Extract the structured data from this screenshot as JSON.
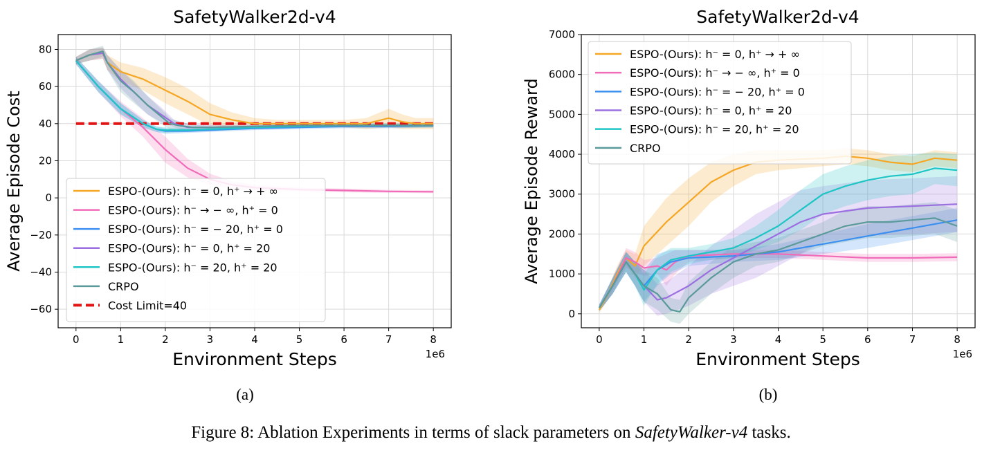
{
  "figure": {
    "caption_prefix": "Figure 8: Ablation Experiments in terms of slack parameters on ",
    "caption_em": "SafetyWalker-v4",
    "caption_suffix": " tasks."
  },
  "chart_data": [
    {
      "type": "line",
      "panel_label": "(a)",
      "title": "SafetyWalker2d-v4",
      "xlabel": "Environment Steps",
      "ylabel": "Average Episode Cost",
      "x_offset_text": "1e6",
      "xlim": [
        -0.4,
        8.4
      ],
      "ylim": [
        -70,
        88
      ],
      "xticks": [
        0,
        1,
        2,
        3,
        4,
        5,
        6,
        7,
        8
      ],
      "yticks": [
        -60,
        -40,
        -20,
        0,
        20,
        40,
        60,
        80
      ],
      "ytick_labels": [
        "−60",
        "−40",
        "−20",
        "0",
        "20",
        "40",
        "60",
        "80"
      ],
      "grid": true,
      "legend_position": "lower-left",
      "series": [
        {
          "name": "ESPO-(Ours): h⁻ = 0, h⁺ → + ∞",
          "color": "#f5a623",
          "x": [
            0,
            0.3,
            0.6,
            0.7,
            1,
            1.5,
            2,
            2.5,
            3,
            3.5,
            4,
            4.5,
            5,
            5.5,
            6,
            6.5,
            7,
            7.3,
            7.6,
            8
          ],
          "y": [
            74,
            77,
            78,
            73,
            68,
            64,
            58,
            52,
            45,
            42,
            40,
            40,
            40,
            40,
            40,
            40,
            43,
            41,
            40,
            40
          ],
          "band": [
            2,
            3,
            3,
            4,
            5,
            6,
            7,
            7,
            6,
            4,
            3,
            2,
            2,
            2,
            2,
            3,
            5,
            4,
            3,
            3
          ]
        },
        {
          "name": "ESPO-(Ours): h⁻ → − ∞, h⁺ = 0",
          "color": "#f06bb8",
          "x": [
            0,
            0.5,
            1,
            1.5,
            2,
            2.5,
            3,
            3.5,
            4,
            5,
            6,
            7,
            8
          ],
          "y": [
            74,
            60,
            48,
            38,
            26,
            16,
            10,
            7,
            5.5,
            4.5,
            4,
            3.5,
            3.3
          ],
          "band": [
            2,
            3,
            4,
            5,
            7,
            5,
            3,
            2,
            1.5,
            1,
            1,
            0.8,
            0.8
          ]
        },
        {
          "name": "ESPO-(Ours): h⁻ = − 20, h⁺ = 0",
          "color": "#3b8ff0",
          "x": [
            0,
            0.5,
            1,
            1.5,
            1.8,
            2,
            2.5,
            3,
            3.5,
            4,
            5,
            6,
            7,
            8
          ],
          "y": [
            74,
            60,
            48,
            40,
            37,
            36,
            36,
            36.5,
            37,
            37.5,
            38,
            38.5,
            38.5,
            39
          ],
          "band": [
            2,
            3,
            3,
            2,
            1.5,
            1.5,
            1,
            1,
            1,
            1,
            1,
            1,
            1,
            1
          ]
        },
        {
          "name": "ESPO-(Ours): h⁻ = 0, h⁺ = 20",
          "color": "#9b6fe0",
          "x": [
            0,
            0.3,
            0.6,
            0.7,
            1,
            1.3,
            1.6,
            1.9,
            2.2,
            2.5,
            3,
            4,
            5,
            6,
            7,
            8
          ],
          "y": [
            74,
            77,
            78,
            73,
            64,
            57,
            50,
            45,
            40,
            38,
            38,
            38.5,
            39,
            39,
            39,
            39
          ],
          "band": [
            2,
            3,
            3,
            4,
            5,
            5,
            5,
            4,
            2,
            2,
            1.5,
            1,
            1,
            1,
            1,
            1
          ]
        },
        {
          "name": "ESPO-(Ours): h⁻ = 20, h⁺ = 20",
          "color": "#1fc4c4",
          "x": [
            0,
            0.5,
            1,
            1.5,
            1.8,
            2,
            2.5,
            3,
            4,
            5,
            6,
            7,
            8
          ],
          "y": [
            74,
            60,
            48,
            40,
            37,
            36.5,
            36.5,
            37,
            38,
            38.5,
            39,
            39,
            39
          ],
          "band": [
            2,
            3,
            3,
            2,
            1.5,
            1.5,
            1,
            1,
            1,
            1,
            1,
            1,
            1
          ]
        },
        {
          "name": "CRPO",
          "color": "#5a9a9a",
          "x": [
            0,
            0.3,
            0.6,
            0.7,
            1,
            1.3,
            1.6,
            1.9,
            2.1,
            2.3,
            2.6,
            3,
            4,
            5,
            6,
            7,
            8
          ],
          "y": [
            74,
            77,
            79,
            73,
            63,
            57,
            50,
            44,
            40,
            39,
            38,
            38,
            38.5,
            39,
            39,
            39,
            39
          ],
          "band": [
            2,
            3,
            3,
            4,
            6,
            6,
            5,
            4,
            3,
            2,
            1.5,
            1,
            1,
            1,
            1,
            1,
            1
          ]
        }
      ],
      "reference_line": {
        "name": "Cost Limit=40",
        "y": 40,
        "color": "#e01414",
        "style": "dashed"
      }
    },
    {
      "type": "line",
      "panel_label": "(b)",
      "title": "SafetyWalker2d-v4",
      "xlabel": "Environment Steps",
      "ylabel": "Average Episode Reward",
      "x_offset_text": "1e6",
      "xlim": [
        -0.4,
        8.4
      ],
      "ylim": [
        -350,
        7000
      ],
      "xticks": [
        0,
        1,
        2,
        3,
        4,
        5,
        6,
        7,
        8
      ],
      "yticks": [
        0,
        1000,
        2000,
        3000,
        4000,
        5000,
        6000,
        7000
      ],
      "ytick_labels": [
        "0",
        "1000",
        "2000",
        "3000",
        "4000",
        "5000",
        "6000",
        "7000"
      ],
      "grid": true,
      "legend_position": "upper-left",
      "series": [
        {
          "name": "ESPO-(Ours): h⁻ = 0, h⁺ → + ∞",
          "color": "#f5a623",
          "x": [
            0,
            0.2,
            0.4,
            0.6,
            0.8,
            1,
            1.5,
            2,
            2.5,
            3,
            3.5,
            4,
            5,
            5.5,
            6,
            6.5,
            7,
            7.5,
            8
          ],
          "y": [
            100,
            500,
            1000,
            1400,
            1200,
            1700,
            2300,
            2800,
            3300,
            3600,
            3800,
            3850,
            3900,
            3950,
            3900,
            3800,
            3750,
            3900,
            3850
          ],
          "band": [
            80,
            150,
            200,
            200,
            300,
            500,
            600,
            600,
            500,
            400,
            300,
            250,
            200,
            200,
            200,
            200,
            200,
            200,
            200
          ]
        },
        {
          "name": "ESPO-(Ours): h⁻ → − ∞, h⁺ = 0",
          "color": "#f06bb8",
          "x": [
            0,
            0.3,
            0.6,
            0.8,
            1,
            1.3,
            1.5,
            1.7,
            2,
            3,
            4,
            5,
            6,
            7,
            8
          ],
          "y": [
            150,
            700,
            1400,
            1300,
            1150,
            1200,
            1100,
            1300,
            1450,
            1500,
            1500,
            1450,
            1400,
            1400,
            1420
          ],
          "band": [
            80,
            200,
            250,
            250,
            200,
            200,
            400,
            300,
            150,
            100,
            100,
            100,
            100,
            100,
            100
          ]
        },
        {
          "name": "ESPO-(Ours): h⁻ = − 20, h⁺ = 0",
          "color": "#3b8ff0",
          "x": [
            0,
            0.3,
            0.6,
            0.8,
            1,
            1.3,
            1.6,
            2,
            3,
            4,
            5,
            6,
            7,
            8
          ],
          "y": [
            150,
            700,
            1300,
            1000,
            700,
            1100,
            1300,
            1400,
            1450,
            1550,
            1750,
            1950,
            2150,
            2350
          ],
          "band": [
            80,
            200,
            250,
            300,
            400,
            400,
            300,
            200,
            150,
            200,
            250,
            300,
            300,
            300
          ]
        },
        {
          "name": "ESPO-(Ours): h⁻ = 0, h⁺ = 20",
          "color": "#9b6fe0",
          "x": [
            0,
            0.3,
            0.6,
            0.8,
            1,
            1.3,
            1.5,
            2,
            2.5,
            3,
            3.5,
            4,
            4.5,
            5,
            6,
            7,
            8
          ],
          "y": [
            150,
            700,
            1300,
            1000,
            700,
            350,
            400,
            700,
            1100,
            1400,
            1700,
            2000,
            2300,
            2500,
            2650,
            2700,
            2750
          ],
          "band": [
            80,
            200,
            250,
            300,
            400,
            400,
            400,
            500,
            600,
            700,
            800,
            800,
            800,
            700,
            700,
            700,
            700
          ]
        },
        {
          "name": "ESPO-(Ours): h⁻ = 20, h⁺ = 20",
          "color": "#1fc4c4",
          "x": [
            0,
            0.3,
            0.6,
            0.8,
            1,
            1.3,
            1.6,
            2,
            2.5,
            3,
            3.5,
            4,
            4.5,
            5,
            5.5,
            6,
            6.5,
            7,
            7.5,
            8
          ],
          "y": [
            150,
            700,
            1300,
            1000,
            600,
            1100,
            1350,
            1450,
            1550,
            1650,
            1900,
            2200,
            2600,
            3000,
            3200,
            3350,
            3450,
            3500,
            3650,
            3600
          ],
          "band": [
            80,
            200,
            250,
            300,
            400,
            350,
            300,
            200,
            200,
            250,
            300,
            400,
            500,
            500,
            500,
            500,
            500,
            500,
            400,
            400
          ]
        },
        {
          "name": "CRPO",
          "color": "#5a9a9a",
          "x": [
            0,
            0.3,
            0.6,
            0.8,
            1,
            1.3,
            1.6,
            1.8,
            2,
            2.5,
            3,
            3.5,
            4,
            4.5,
            5,
            5.5,
            6,
            6.5,
            7,
            7.5,
            8
          ],
          "y": [
            150,
            700,
            1300,
            1000,
            700,
            500,
            100,
            50,
            400,
            900,
            1300,
            1500,
            1600,
            1800,
            2000,
            2200,
            2300,
            2300,
            2350,
            2400,
            2200
          ],
          "band": [
            80,
            200,
            250,
            300,
            400,
            400,
            300,
            300,
            400,
            400,
            400,
            300,
            300,
            300,
            300,
            400,
            400,
            400,
            400,
            400,
            400
          ]
        }
      ]
    }
  ]
}
